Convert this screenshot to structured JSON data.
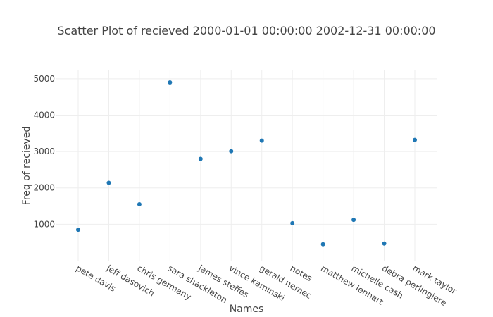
{
  "chart_data": {
    "type": "scatter",
    "title": "Scatter Plot of recieved 2000-01-01 00:00:00 2002-12-31 00:00:00",
    "xlabel": "Names",
    "ylabel": "Freq of recieved",
    "categories": [
      "pete davis",
      "jeff dasovich",
      "chris germany",
      "sara shackleton",
      "james steffes",
      "vince kaminski",
      "gerald nemec",
      "notes",
      "matthew lenhart",
      "michelle cash",
      "debra perlingiere",
      "mark taylor"
    ],
    "values": [
      850,
      2140,
      1550,
      4900,
      2800,
      3010,
      3300,
      1030,
      450,
      1120,
      470,
      3320
    ],
    "y_ticks": [
      1000,
      2000,
      3000,
      4000,
      5000
    ],
    "y_tick_labels": [
      "1000",
      "2000",
      "3000",
      "4000",
      "5000"
    ],
    "ylim": [
      0,
      5230
    ],
    "grid": true,
    "marker_color": "#1f77b4"
  }
}
